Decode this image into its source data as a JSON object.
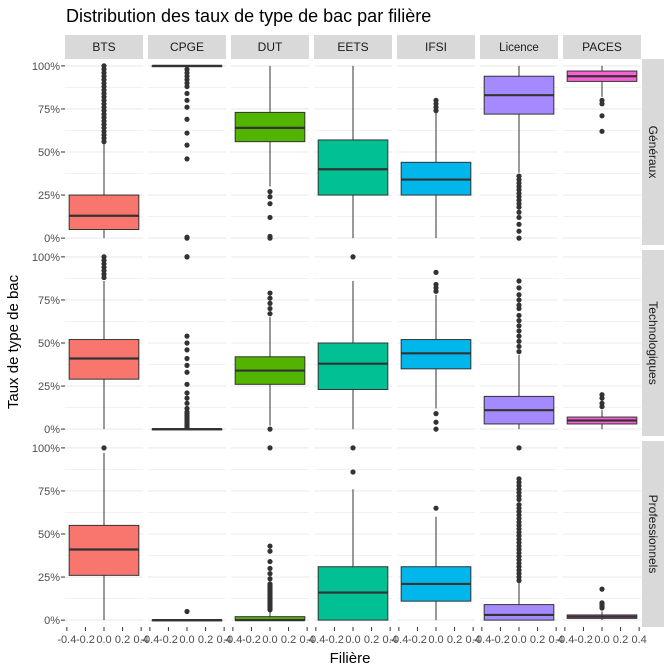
{
  "chart_data": {
    "type": "boxplot",
    "title": "Distribution des taux de type de bac par filière",
    "xlabel": "Filière",
    "ylabel": "Taux de type de bac",
    "panel_columns": [
      "BTS",
      "CPGE",
      "DUT",
      "EETS",
      "IFSI",
      "Licence",
      "PACES"
    ],
    "panel_rows": [
      "Généraux",
      "Technologiques",
      "Professionnels"
    ],
    "x_ticks": [
      "-0.4",
      "-0.2",
      "0.0",
      "0.2",
      "0.4"
    ],
    "y_ticks": [
      "0%",
      "25%",
      "50%",
      "75%",
      "100%"
    ],
    "y_tick_values": [
      0,
      25,
      50,
      75,
      100
    ],
    "ylim": [
      -4,
      104
    ],
    "xlim": [
      -0.42,
      0.42
    ],
    "grid": true,
    "legend": "none",
    "colors": {
      "BTS": "#F8766D",
      "CPGE": "#C49A00",
      "DUT": "#53B400",
      "EETS": "#00C094",
      "IFSI": "#00B6EB",
      "Licence": "#A58AFF",
      "PACES": "#FB61D7"
    },
    "boxes": {
      "Généraux": {
        "BTS": {
          "min": 0,
          "q1": 5,
          "median": 13,
          "q3": 25,
          "max": 55,
          "outliers": [
            56,
            58,
            60,
            62,
            64,
            66,
            68,
            70,
            72,
            74,
            76,
            78,
            80,
            82,
            84,
            86,
            88,
            90,
            92,
            94,
            96,
            98,
            100
          ]
        },
        "CPGE": {
          "min": 100,
          "q1": 100,
          "median": 100,
          "q3": 100,
          "max": 100,
          "outliers": [
            46,
            54,
            61,
            69,
            76,
            80,
            84,
            88,
            90,
            92,
            94,
            96,
            98,
            0,
            0.5
          ]
        },
        "DUT": {
          "min": 30,
          "q1": 56,
          "median": 64,
          "q3": 73,
          "max": 100,
          "outliers": [
            0,
            1,
            12,
            20,
            24,
            27
          ]
        },
        "EETS": {
          "min": 0,
          "q1": 25,
          "median": 40,
          "q3": 57,
          "max": 100,
          "outliers": []
        },
        "IFSI": {
          "min": 0,
          "q1": 25,
          "median": 34,
          "q3": 44,
          "max": 73,
          "outliers": [
            74,
            76,
            78,
            80
          ]
        },
        "Licence": {
          "min": 38,
          "q1": 72,
          "median": 83,
          "q3": 94,
          "max": 100,
          "outliers": [
            0,
            4,
            8,
            12,
            15,
            18,
            20,
            22,
            24,
            26,
            28,
            30,
            32,
            34,
            36
          ]
        },
        "PACES": {
          "min": 82,
          "q1": 91,
          "median": 94,
          "q3": 97,
          "max": 100,
          "outliers": [
            62,
            71,
            78,
            80
          ]
        }
      },
      "Technologiques": {
        "BTS": {
          "min": 0,
          "q1": 29,
          "median": 41,
          "q3": 52,
          "max": 86,
          "outliers": [
            88,
            90,
            92,
            94,
            96,
            98,
            100
          ]
        },
        "CPGE": {
          "min": 0,
          "q1": 0,
          "median": 0,
          "q3": 0,
          "max": 0,
          "outliers": [
            1,
            2,
            3,
            4,
            5,
            6,
            7,
            8,
            9,
            10,
            12,
            15,
            18,
            21,
            26,
            33,
            37,
            41,
            46,
            50,
            54,
            100,
            100
          ]
        },
        "DUT": {
          "min": 2,
          "q1": 26,
          "median": 34,
          "q3": 42,
          "max": 65,
          "outliers": [
            0,
            67,
            70,
            73,
            76,
            79
          ]
        },
        "EETS": {
          "min": 0,
          "q1": 23,
          "median": 38,
          "q3": 50,
          "max": 86,
          "outliers": [
            100
          ]
        },
        "IFSI": {
          "min": 12,
          "q1": 35,
          "median": 44,
          "q3": 52,
          "max": 78,
          "outliers": [
            0,
            4,
            9,
            80,
            82,
            84,
            91
          ]
        },
        "Licence": {
          "min": 0,
          "q1": 3,
          "median": 11,
          "q3": 19,
          "max": 43,
          "outliers": [
            45,
            48,
            51,
            54,
            57,
            60,
            63,
            66,
            70,
            72,
            75,
            78,
            82,
            86
          ]
        },
        "PACES": {
          "min": 0,
          "q1": 3,
          "median": 5,
          "q3": 7,
          "max": 11,
          "outliers": [
            13,
            15,
            18,
            20
          ]
        }
      },
      "Professionnels": {
        "BTS": {
          "min": 0,
          "q1": 26,
          "median": 41,
          "q3": 55,
          "max": 97,
          "outliers": [
            100
          ]
        },
        "CPGE": {
          "min": 0,
          "q1": 0,
          "median": 0,
          "q3": 0,
          "max": 0,
          "outliers": [
            5
          ]
        },
        "DUT": {
          "min": 0,
          "q1": 0,
          "median": 0,
          "q3": 2,
          "max": 5,
          "outliers": [
            6,
            7,
            8,
            9,
            10,
            11,
            12,
            13,
            14,
            15,
            16,
            17,
            18,
            19,
            20,
            21,
            24,
            27,
            30,
            34,
            40,
            43,
            100
          ]
        },
        "EETS": {
          "min": 0,
          "q1": 0,
          "median": 16,
          "q3": 31,
          "max": 76,
          "outliers": [
            86,
            100
          ]
        },
        "IFSI": {
          "min": 0,
          "q1": 11,
          "median": 21,
          "q3": 31,
          "max": 60,
          "outliers": [
            65
          ]
        },
        "Licence": {
          "min": 0,
          "q1": 0,
          "median": 3,
          "q3": 9,
          "max": 22,
          "outliers": [
            23,
            25,
            27,
            29,
            31,
            33,
            35,
            37,
            39,
            41,
            43,
            45,
            47,
            49,
            51,
            53,
            55,
            57,
            59,
            61,
            63,
            65,
            67,
            70,
            72,
            74,
            76,
            78,
            80,
            82,
            100
          ]
        },
        "PACES": {
          "min": 0,
          "q1": 1,
          "median": 2,
          "q3": 3,
          "max": 5,
          "outliers": [
            7,
            8,
            9,
            10,
            18
          ]
        }
      }
    }
  }
}
